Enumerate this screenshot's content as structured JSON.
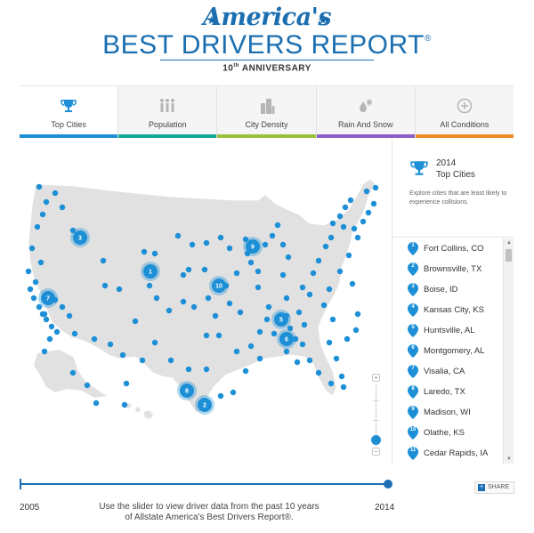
{
  "header": {
    "script_title": "America's",
    "main_title": "BEST DRIVERS REPORT",
    "registered": "®",
    "anniversary_ord": "10",
    "anniversary_sup": "th",
    "anniversary_rest": " ANNIVERSARY"
  },
  "tabs": [
    {
      "label": "Top Cities",
      "icon": "trophy-icon",
      "color": "#1c8fd6",
      "active": true
    },
    {
      "label": "Population",
      "icon": "population-icon",
      "color": "#14a898",
      "active": false
    },
    {
      "label": "City Density",
      "icon": "buildings-icon",
      "color": "#9bbf3a",
      "active": false
    },
    {
      "label": "Rain And Snow",
      "icon": "rain-snow-icon",
      "color": "#8d5cc4",
      "active": false
    },
    {
      "label": "All Conditions",
      "icon": "plus-circle-icon",
      "color": "#ef8b22",
      "active": false
    }
  ],
  "sidebar": {
    "year": "2014",
    "title": "Top Cities",
    "description": "Explore cities that are least likely to experience collisions."
  },
  "cities": [
    {
      "rank": "1",
      "name": "Fort Collins, CO"
    },
    {
      "rank": "2",
      "name": "Brownsville, TX"
    },
    {
      "rank": "3",
      "name": "Boise, ID"
    },
    {
      "rank": "4",
      "name": "Kansas City, KS"
    },
    {
      "rank": "5",
      "name": "Huntsville, AL"
    },
    {
      "rank": "6",
      "name": "Montgomery, AL"
    },
    {
      "rank": "7",
      "name": "Visalia, CA"
    },
    {
      "rank": "8",
      "name": "Laredo, TX"
    },
    {
      "rank": "9",
      "name": "Madison, WI"
    },
    {
      "rank": "10",
      "name": "Olathe, KS"
    },
    {
      "rank": "11",
      "name": "Cedar Rapids, IA"
    }
  ],
  "slider": {
    "start_year": "2005",
    "end_year": "2014",
    "hint": "Use the slider to view driver data from the past 10 years of Allstate America's Best Drivers Report®.",
    "share_label": "SHARE"
  },
  "colors": {
    "brand_blue": "#1b6fb0",
    "marker_blue": "#1c8fd6",
    "land_gray": "#e1e1e1"
  }
}
